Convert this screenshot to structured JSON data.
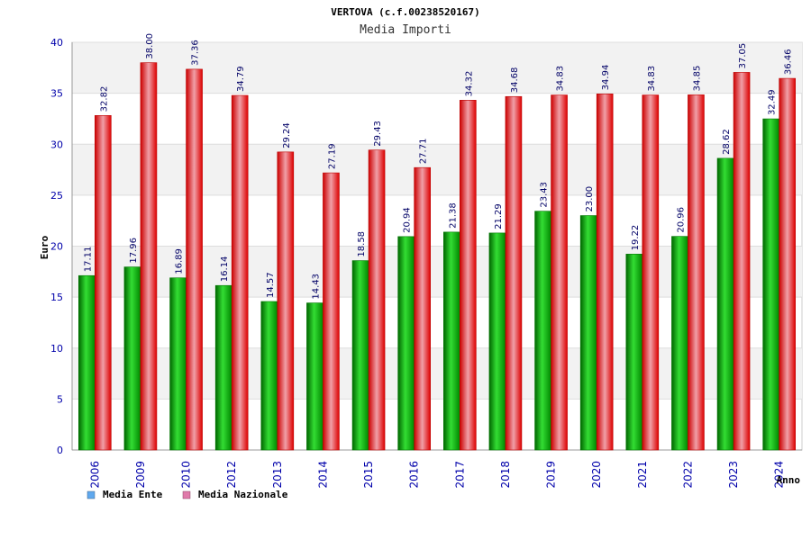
{
  "chart_data": {
    "type": "bar",
    "title": "VERTOVA (c.f.00238520167)",
    "subtitle": "Media Importi",
    "xlabel": "Anno",
    "ylabel": "Euro",
    "ylim": [
      0,
      40
    ],
    "yticks": [
      "0",
      "5",
      "10",
      "15",
      "20",
      "25",
      "30",
      "35",
      "40"
    ],
    "categories": [
      "2006",
      "2009",
      "2010",
      "2012",
      "2013",
      "2014",
      "2015",
      "2016",
      "2017",
      "2018",
      "2019",
      "2020",
      "2021",
      "2022",
      "2023",
      "2024"
    ],
    "series": [
      {
        "name": "Media Ente",
        "color": "#00aa00",
        "legend_color": "#5fa8ee",
        "values": [
          17.11,
          17.96,
          16.89,
          16.14,
          14.57,
          14.43,
          18.58,
          20.94,
          21.38,
          21.29,
          23.43,
          23.0,
          19.22,
          20.96,
          28.62,
          32.49
        ],
        "labels": [
          "17.11",
          "17.96",
          "16.89",
          "16.14",
          "14.57",
          "14.43",
          "18.58",
          "20.94",
          "21.38",
          "21.29",
          "23.43",
          "23.00",
          "19.22",
          "20.96",
          "28.62",
          "32.49"
        ]
      },
      {
        "name": "Media Nazionale",
        "color": "#ee0000",
        "legend_color": "#e07aaa",
        "values": [
          32.82,
          38.0,
          37.36,
          34.79,
          29.24,
          27.19,
          29.43,
          27.71,
          34.32,
          34.68,
          34.83,
          34.94,
          34.83,
          34.85,
          37.05,
          36.46
        ],
        "labels": [
          "32.82",
          "38.00",
          "37.36",
          "34.79",
          "29.24",
          "27.19",
          "29.43",
          "27.71",
          "34.32",
          "34.68",
          "34.83",
          "34.94",
          "34.83",
          "34.85",
          "37.05",
          "36.46"
        ]
      }
    ],
    "legend_position": "bottom-left"
  }
}
